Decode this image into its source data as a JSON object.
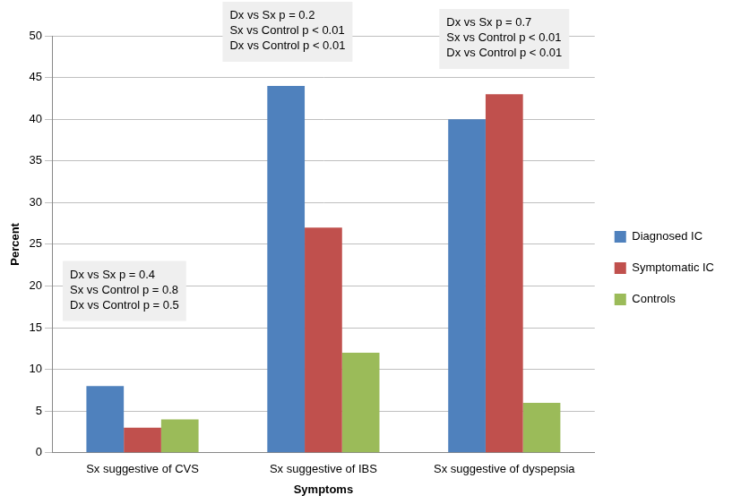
{
  "chart_data": {
    "type": "bar",
    "x_label": "Symptoms",
    "y_label": "Percent",
    "categories": [
      "Sx suggestive of CVS",
      "Sx suggestive of IBS",
      "Sx suggestive of dyspepsia"
    ],
    "series": [
      {
        "name": "Diagnosed IC",
        "color": "#4F81BD",
        "values": [
          8,
          44,
          40
        ]
      },
      {
        "name": "Symptomatic IC",
        "color": "#C0504D",
        "values": [
          3,
          27,
          43
        ]
      },
      {
        "name": "Controls",
        "color": "#9BBB59",
        "values": [
          4,
          12,
          6
        ]
      }
    ],
    "ylim": [
      0,
      50
    ],
    "yticks": [
      0,
      5,
      10,
      15,
      20,
      25,
      30,
      35,
      40,
      45,
      50
    ],
    "grid": true,
    "legend": "right",
    "annotations": [
      [
        "Dx vs Sx p = 0.4",
        "Sx vs Control p = 0.8",
        "Dx vs Control p = 0.5"
      ],
      [
        "Dx vs Sx p = 0.2",
        "Sx vs Control p < 0.01",
        "Dx vs Control p < 0.01"
      ],
      [
        "Dx vs Sx p = 0.7",
        "Sx vs Control p < 0.01",
        "Dx vs Control p < 0.01"
      ]
    ]
  }
}
